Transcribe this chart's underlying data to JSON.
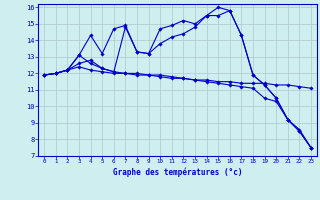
{
  "xlabel": "Graphe des températures (°c)",
  "background_color": "#ceeef0",
  "grid_color": "#b0c8c8",
  "line_color": "#0000cc",
  "xlim": [
    -0.5,
    23.5
  ],
  "ylim": [
    7,
    16.2
  ],
  "yticks": [
    7,
    8,
    9,
    10,
    11,
    12,
    13,
    14,
    15,
    16
  ],
  "xticks": [
    0,
    1,
    2,
    3,
    4,
    5,
    6,
    7,
    8,
    9,
    10,
    11,
    12,
    13,
    14,
    15,
    16,
    17,
    18,
    19,
    20,
    21,
    22,
    23
  ],
  "series": [
    {
      "x": [
        0,
        1,
        2,
        3,
        4,
        5,
        6,
        7,
        8,
        9,
        10,
        11,
        12,
        13,
        14,
        15,
        16,
        17,
        18,
        19,
        20,
        21,
        22,
        23
      ],
      "y": [
        11.9,
        12.0,
        12.2,
        12.4,
        12.2,
        12.1,
        12.0,
        12.0,
        11.9,
        11.9,
        11.8,
        11.7,
        11.7,
        11.6,
        11.6,
        11.5,
        11.5,
        11.4,
        11.4,
        11.4,
        11.3,
        11.3,
        11.2,
        11.1
      ]
    },
    {
      "x": [
        0,
        1,
        2,
        3,
        4,
        5,
        6,
        7,
        8,
        9,
        10,
        11,
        12,
        13,
        14,
        15,
        16,
        17,
        18,
        19,
        20,
        21,
        22,
        23
      ],
      "y": [
        11.9,
        12.0,
        12.2,
        13.1,
        12.6,
        12.3,
        12.1,
        12.0,
        12.0,
        11.9,
        11.9,
        11.8,
        11.7,
        11.6,
        11.5,
        11.4,
        11.3,
        11.2,
        11.1,
        10.5,
        10.3,
        9.2,
        8.6,
        7.5
      ]
    },
    {
      "x": [
        0,
        1,
        2,
        3,
        4,
        5,
        6,
        7,
        8,
        9,
        10,
        11,
        12,
        13,
        14,
        15,
        16,
        17,
        18,
        19,
        20,
        21,
        22,
        23
      ],
      "y": [
        11.9,
        12.0,
        12.2,
        13.1,
        14.3,
        13.2,
        14.7,
        14.9,
        13.3,
        13.2,
        13.8,
        14.2,
        14.4,
        14.8,
        15.5,
        16.0,
        15.8,
        14.3,
        11.9,
        11.3,
        10.5,
        9.2,
        8.5,
        7.5
      ]
    },
    {
      "x": [
        0,
        1,
        2,
        3,
        4,
        5,
        6,
        7,
        8,
        9,
        10,
        11,
        12,
        13,
        14,
        15,
        16,
        17,
        18,
        19,
        20,
        21,
        22,
        23
      ],
      "y": [
        11.9,
        12.0,
        12.2,
        12.6,
        12.8,
        12.3,
        12.1,
        14.8,
        13.3,
        13.2,
        14.7,
        14.9,
        15.2,
        15.0,
        15.5,
        15.5,
        15.8,
        14.3,
        11.9,
        11.3,
        10.5,
        9.2,
        8.5,
        7.5
      ]
    }
  ]
}
